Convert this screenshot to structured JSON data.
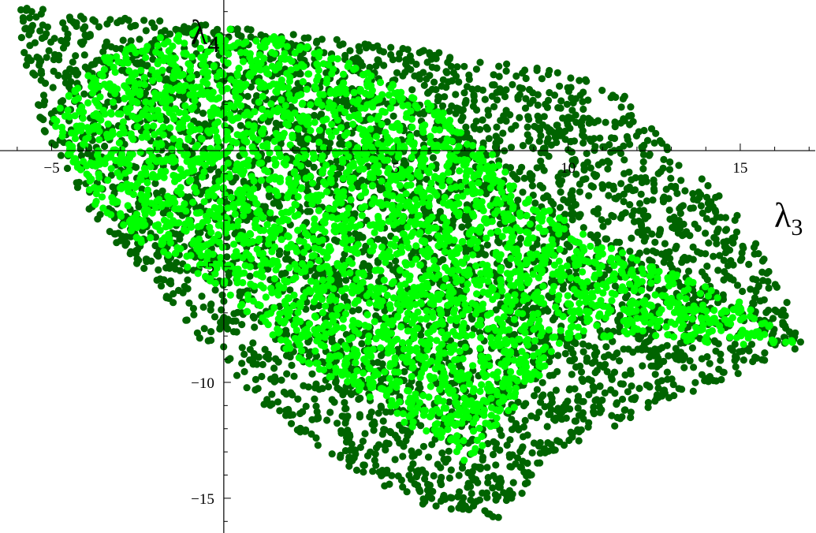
{
  "chart_data": {
    "type": "scatter",
    "xlabel": "λ3",
    "ylabel": "λ4",
    "xlabel_main": "λ",
    "xlabel_sub": "3",
    "ylabel_main": "λ",
    "ylabel_sub": "4",
    "xlim": [
      -6.5,
      17.2
    ],
    "ylim": [
      -16.5,
      6.5
    ],
    "x_ticks": [
      -5,
      5,
      10,
      15
    ],
    "y_ticks": [
      -5,
      -10,
      -15
    ],
    "x_tick_labels": [
      "−5",
      "5",
      "10",
      "15"
    ],
    "y_tick_labels": [
      "−5",
      "−10",
      "−15"
    ],
    "grid": false,
    "series": [
      {
        "color": "#006400",
        "regions": [
          {
            "polygon": [
              [
                -5.9,
                6.2
              ],
              [
                -5.0,
                6.1
              ],
              [
                0.0,
                5.4
              ],
              [
                5.0,
                4.5
              ],
              [
                10.0,
                3.4
              ],
              [
                11.9,
                2.2
              ],
              [
                13.0,
                0.0
              ],
              [
                15.0,
                -2.7
              ],
              [
                17.0,
                -8.3
              ],
              [
                15.0,
                -9.6
              ],
              [
                12.0,
                -11.5
              ],
              [
                10.0,
                -12.9
              ],
              [
                9.0,
                -13.8
              ],
              [
                8.5,
                -15.5
              ],
              [
                8.0,
                -15.9
              ],
              [
                6.0,
                -15.4
              ],
              [
                4.0,
                -14.0
              ],
              [
                2.0,
                -12.0
              ],
              [
                0.0,
                -9.5
              ],
              [
                -1.0,
                -7.5
              ],
              [
                -2.5,
                -5.0
              ],
              [
                -4.0,
                -2.5
              ],
              [
                -5.0,
                0.0
              ],
              [
                -5.5,
                2.0
              ],
              [
                -5.9,
                4.0
              ]
            ],
            "count": 4200
          }
        ]
      },
      {
        "color": "#00ff00",
        "regions": [
          {
            "polygon": [
              [
                -5.0,
                1.3
              ],
              [
                -4.0,
                3.5
              ],
              [
                -3.0,
                4.5
              ],
              [
                -1.0,
                5.2
              ],
              [
                0.0,
                5.3
              ],
              [
                2.0,
                4.8
              ],
              [
                4.0,
                3.6
              ],
              [
                6.0,
                2.0
              ],
              [
                7.5,
                0.5
              ],
              [
                8.5,
                -1.5
              ],
              [
                10.5,
                -3.5
              ],
              [
                12.5,
                -5.0
              ],
              [
                15.0,
                -6.4
              ],
              [
                16.7,
                -8.3
              ],
              [
                14.5,
                -8.4
              ],
              [
                12.0,
                -8.0
              ],
              [
                10.0,
                -8.2
              ],
              [
                9.0,
                -10.0
              ],
              [
                8.0,
                -12.0
              ],
              [
                7.0,
                -13.5
              ],
              [
                5.5,
                -12.0
              ],
              [
                4.0,
                -10.5
              ],
              [
                2.0,
                -9.0
              ],
              [
                0.0,
                -6.0
              ],
              [
                -1.0,
                -5.2
              ],
              [
                -2.5,
                -4.0
              ],
              [
                -4.0,
                -2.0
              ],
              [
                -4.6,
                0.0
              ]
            ],
            "count": 3200
          }
        ]
      }
    ]
  }
}
